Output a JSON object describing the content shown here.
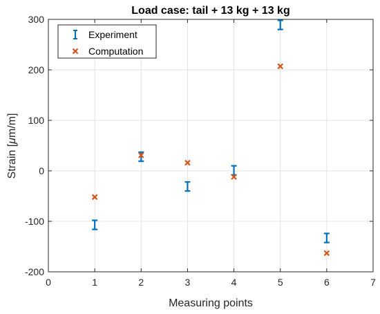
{
  "chart_data": {
    "type": "scatter",
    "title": "Load case: tail + 13 kg + 13 kg",
    "xlabel": "Measuring points",
    "ylabel_prefix": "Strain [",
    "ylabel_mu": "μ",
    "ylabel_suffix": "m/m]",
    "xlim": [
      0,
      7
    ],
    "ylim": [
      -200,
      300
    ],
    "xticks": [
      0,
      1,
      2,
      3,
      4,
      5,
      6,
      7
    ],
    "yticks": [
      -200,
      -100,
      0,
      100,
      200,
      300
    ],
    "grid": true,
    "legend_position": "top-left",
    "series": [
      {
        "name": "Experiment",
        "marker": "errorbar",
        "color": "#0072BD",
        "x": [
          1,
          2,
          3,
          4,
          5,
          6
        ],
        "y": [
          -107,
          28,
          -31,
          1,
          289,
          -133
        ],
        "err_low": [
          9,
          9,
          9,
          9,
          9,
          9
        ],
        "err_high": [
          9,
          9,
          9,
          9,
          9,
          9
        ]
      },
      {
        "name": "Computation",
        "marker": "x",
        "color": "#D95319",
        "x": [
          1,
          2,
          3,
          4,
          5,
          6
        ],
        "y": [
          -52,
          31,
          16,
          -12,
          207,
          -163
        ]
      }
    ]
  }
}
